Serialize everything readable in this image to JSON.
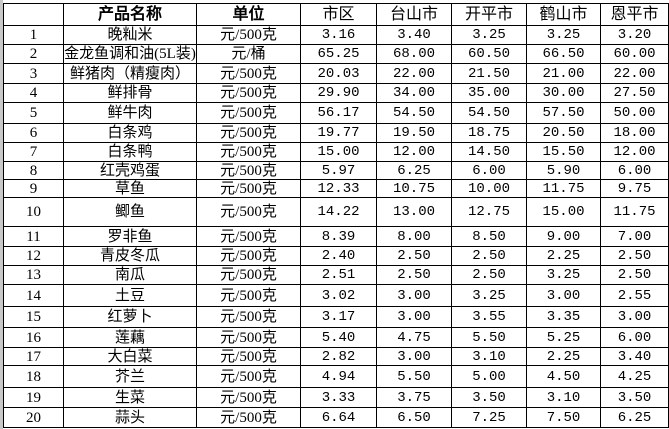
{
  "headers": [
    "",
    "产品名称",
    "单位",
    "市区",
    "台山市",
    "开平市",
    "鹤山市",
    "恩平市"
  ],
  "rows": [
    {
      "no": "1",
      "name": "晚籼米",
      "unit": "元/500克",
      "v": [
        "3.16",
        "3.40",
        "3.25",
        "3.25",
        "3.20"
      ]
    },
    {
      "no": "2",
      "name": "金龙鱼调和油(5L装)",
      "unit": "元/桶",
      "v": [
        "65.25",
        "68.00",
        "60.50",
        "66.50",
        "60.00"
      ]
    },
    {
      "no": "3",
      "name": "鲜猪肉（精瘦肉）",
      "unit": "元/500克",
      "v": [
        "20.03",
        "22.00",
        "21.50",
        "21.00",
        "22.00"
      ]
    },
    {
      "no": "4",
      "name": "鲜排骨",
      "unit": "元/500克",
      "v": [
        "29.90",
        "34.00",
        "35.00",
        "30.00",
        "27.50"
      ]
    },
    {
      "no": "5",
      "name": "鲜牛肉",
      "unit": "元/500克",
      "v": [
        "56.17",
        "54.50",
        "54.50",
        "57.50",
        "50.00"
      ]
    },
    {
      "no": "6",
      "name": "白条鸡",
      "unit": "元/500克",
      "v": [
        "19.77",
        "19.50",
        "18.75",
        "20.50",
        "18.00"
      ]
    },
    {
      "no": "7",
      "name": "白条鸭",
      "unit": "元/500克",
      "v": [
        "15.00",
        "12.00",
        "14.50",
        "15.50",
        "12.00"
      ]
    },
    {
      "no": "8",
      "name": "红壳鸡蛋",
      "unit": "元/500克",
      "v": [
        "5.97",
        "6.25",
        "6.00",
        "5.90",
        "6.00"
      ]
    },
    {
      "no": "9",
      "name": "草鱼",
      "unit": "元/500克",
      "v": [
        "12.33",
        "10.75",
        "10.00",
        "11.75",
        "9.75"
      ]
    },
    {
      "no": "10",
      "name": "鲫鱼",
      "unit": "元/500克",
      "v": [
        "14.22",
        "13.00",
        "12.75",
        "15.00",
        "11.75"
      ]
    },
    {
      "no": "11",
      "name": "罗非鱼",
      "unit": "元/500克",
      "v": [
        "8.39",
        "8.00",
        "8.50",
        "9.00",
        "7.00"
      ]
    },
    {
      "no": "12",
      "name": "青皮冬瓜",
      "unit": "元/500克",
      "v": [
        "2.40",
        "2.50",
        "2.50",
        "2.25",
        "2.50"
      ]
    },
    {
      "no": "13",
      "name": "南瓜",
      "unit": "元/500克",
      "v": [
        "2.51",
        "2.50",
        "2.50",
        "3.25",
        "2.50"
      ]
    },
    {
      "no": "14",
      "name": "土豆",
      "unit": "元/500克",
      "v": [
        "3.02",
        "3.00",
        "3.25",
        "3.00",
        "2.55"
      ]
    },
    {
      "no": "15",
      "name": "红萝卜",
      "unit": "元/500克",
      "v": [
        "3.17",
        "3.00",
        "3.55",
        "3.35",
        "3.00"
      ]
    },
    {
      "no": "16",
      "name": "莲藕",
      "unit": "元/500克",
      "v": [
        "5.40",
        "4.75",
        "5.50",
        "5.25",
        "6.00"
      ]
    },
    {
      "no": "17",
      "name": "大白菜",
      "unit": "元/500克",
      "v": [
        "2.82",
        "3.00",
        "3.10",
        "2.25",
        "3.40"
      ]
    },
    {
      "no": "18",
      "name": "芥兰",
      "unit": "元/500克",
      "v": [
        "4.94",
        "5.50",
        "5.00",
        "4.50",
        "4.25"
      ]
    },
    {
      "no": "19",
      "name": "生菜",
      "unit": "元/500克",
      "v": [
        "3.33",
        "3.75",
        "3.50",
        "3.10",
        "3.50"
      ]
    },
    {
      "no": "20",
      "name": "蒜头",
      "unit": "元/500克",
      "v": [
        "6.64",
        "6.50",
        "7.25",
        "7.50",
        "6.25"
      ]
    }
  ]
}
